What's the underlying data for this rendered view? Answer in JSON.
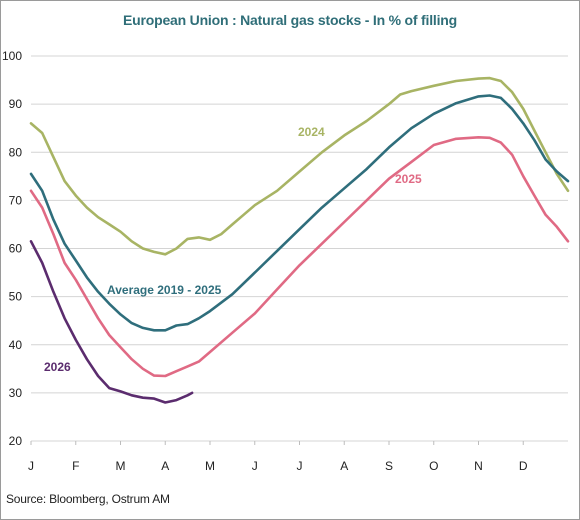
{
  "chart_data": {
    "type": "line",
    "title": "European Union : Natural gas stocks - In % of filling",
    "xlabel": "",
    "ylabel": "",
    "x_ticks": [
      "J",
      "F",
      "M",
      "A",
      "M",
      "J",
      "J",
      "A",
      "S",
      "O",
      "N",
      "D"
    ],
    "xlim": [
      0,
      12
    ],
    "ylim": [
      20,
      100
    ],
    "y_ticks": [
      20,
      30,
      40,
      50,
      60,
      70,
      80,
      90,
      100
    ],
    "grid": "horizontal",
    "series": [
      {
        "name": "2024",
        "color": "#a8b464",
        "x": [
          0,
          0.25,
          0.5,
          0.75,
          1,
          1.25,
          1.5,
          1.75,
          2,
          2.25,
          2.5,
          2.75,
          3,
          3.25,
          3.5,
          3.75,
          4,
          4.25,
          4.5,
          4.75,
          5,
          5.5,
          6,
          6.5,
          7,
          7.5,
          8,
          8.25,
          8.5,
          9,
          9.5,
          10,
          10.25,
          10.5,
          10.75,
          11,
          11.25,
          11.5,
          11.75,
          12
        ],
        "y": [
          86,
          84,
          79,
          74,
          71,
          68.5,
          66.5,
          65,
          63.5,
          61.5,
          60,
          59.3,
          58.8,
          60,
          62,
          62.3,
          61.8,
          63,
          65,
          67,
          69,
          72,
          76,
          80,
          83.5,
          86.5,
          90,
          92,
          92.7,
          93.8,
          94.8,
          95.3,
          95.4,
          94.8,
          92.5,
          89,
          84.5,
          80,
          75.5,
          72
        ]
      },
      {
        "name": "Average 2019 - 2025",
        "color": "#2f6e7c",
        "x": [
          0,
          0.25,
          0.5,
          0.75,
          1,
          1.25,
          1.5,
          1.75,
          2,
          2.25,
          2.5,
          2.75,
          3,
          3.25,
          3.5,
          3.75,
          4,
          4.5,
          5,
          5.5,
          6,
          6.5,
          7,
          7.5,
          8,
          8.5,
          9,
          9.5,
          10,
          10.25,
          10.5,
          10.75,
          11,
          11.25,
          11.5,
          11.75,
          12
        ],
        "y": [
          75.5,
          72,
          66,
          61,
          57.5,
          54,
          51,
          48.5,
          46.3,
          44.5,
          43.5,
          43,
          43,
          44,
          44.3,
          45.5,
          47,
          50.5,
          55,
          59.5,
          64,
          68.5,
          72.5,
          76.5,
          81,
          85,
          88,
          90.2,
          91.6,
          91.8,
          91.3,
          89,
          86,
          82.5,
          78.5,
          76,
          74
        ]
      },
      {
        "name": "2025",
        "color": "#e06a84",
        "x": [
          0,
          0.25,
          0.5,
          0.75,
          1,
          1.25,
          1.5,
          1.75,
          2,
          2.25,
          2.5,
          2.75,
          3,
          3.25,
          3.5,
          3.75,
          4,
          4.5,
          5,
          5.5,
          6,
          6.5,
          7,
          7.5,
          8,
          8.5,
          9,
          9.5,
          10,
          10.25,
          10.5,
          10.75,
          11,
          11.25,
          11.5,
          11.75,
          12
        ],
        "y": [
          72,
          68.5,
          63,
          57,
          53.5,
          49.5,
          45.5,
          42,
          39.5,
          37,
          35,
          33.6,
          33.5,
          34.5,
          35.5,
          36.5,
          38.5,
          42.5,
          46.5,
          51.5,
          56.5,
          61,
          65.5,
          70,
          74.5,
          78,
          81.5,
          82.8,
          83.1,
          83,
          82,
          79.5,
          75,
          71,
          67,
          64.5,
          61.5
        ]
      },
      {
        "name": "2026",
        "color": "#5b2c6e",
        "x": [
          0,
          0.25,
          0.5,
          0.75,
          1,
          1.25,
          1.5,
          1.75,
          2,
          2.25,
          2.5,
          2.75,
          3,
          3.25,
          3.5,
          3.6
        ],
        "y": [
          61.5,
          57,
          51,
          45.5,
          41,
          37,
          33.5,
          31,
          30.3,
          29.5,
          29,
          28.8,
          28,
          28.5,
          29.5,
          30
        ]
      }
    ]
  },
  "labels": {
    "series_2024": "2024",
    "series_avg": "Average 2019 - 2025",
    "series_2025": "2025",
    "series_2026": "2026"
  },
  "source": "Source: Bloomberg, Ostrum AM"
}
